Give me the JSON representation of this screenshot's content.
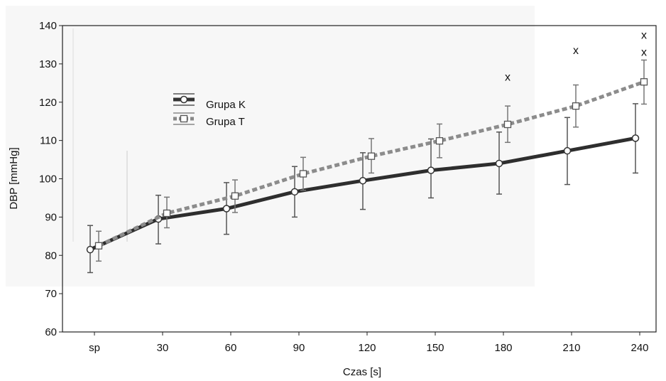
{
  "chart_data": {
    "type": "line",
    "title": "",
    "xlabel": "Czas [s]",
    "ylabel": "DBP [mmHg]",
    "ylim": [
      60,
      140
    ],
    "yticks": [
      60,
      70,
      80,
      90,
      100,
      110,
      120,
      130,
      140
    ],
    "categories": [
      "sp",
      "30",
      "60",
      "90",
      "120",
      "150",
      "180",
      "210",
      "240"
    ],
    "grid": false,
    "legend_position": "upper-left",
    "series": [
      {
        "name": "Grupa K",
        "style": "solid",
        "marker": "circle",
        "color": "#333333",
        "values": [
          81.5,
          89.5,
          92.2,
          96.6,
          99.5,
          102.2,
          104.0,
          107.3,
          110.6
        ],
        "err_low": [
          75.5,
          83.0,
          85.5,
          90.0,
          92.0,
          95.0,
          96.0,
          98.5,
          101.5
        ],
        "err_high": [
          87.8,
          95.7,
          99.0,
          103.2,
          106.8,
          110.4,
          112.2,
          116.0,
          119.6
        ]
      },
      {
        "name": "Grupa T",
        "style": "dotted",
        "marker": "square",
        "color": "#888888",
        "values": [
          82.5,
          91.0,
          95.5,
          101.3,
          105.9,
          109.9,
          114.2,
          119.0,
          125.3
        ],
        "err_low": [
          78.5,
          87.2,
          91.2,
          97.0,
          101.5,
          105.5,
          109.5,
          113.5,
          119.5
        ],
        "err_high": [
          86.3,
          95.2,
          99.7,
          105.6,
          110.5,
          114.3,
          119.0,
          124.5,
          131.0
        ]
      }
    ],
    "annotations": [
      {
        "text": "x",
        "category": "180",
        "y": 126.5
      },
      {
        "text": "x",
        "category": "210",
        "y": 133.5
      },
      {
        "text": "x",
        "category": "240",
        "y": 137.5
      },
      {
        "text": "x",
        "category": "240",
        "y": 133.0
      }
    ]
  }
}
